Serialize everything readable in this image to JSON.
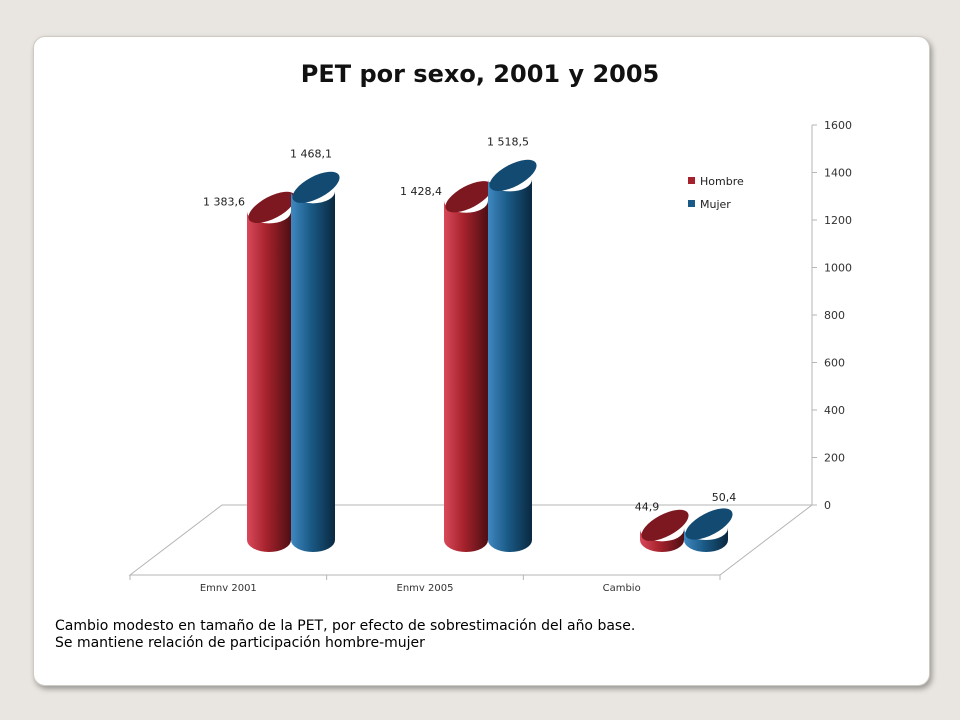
{
  "slide": {
    "notes": [
      "Cambio modesto en tamaño de la PET, por efecto de sobrestimación del año base.",
      "Se mantiene relación de participación hombre-mujer"
    ]
  },
  "chart_data": {
    "type": "bar",
    "title": "PET por sexo, 2001 y 2005",
    "categories": [
      "Emnv 2001",
      "Enmv 2005",
      "Cambio"
    ],
    "series": [
      {
        "name": "Hombre",
        "values": [
          1383.6,
          1428.4,
          44.9
        ],
        "labels": [
          "1 383,6",
          "1 428,4",
          "44,9"
        ],
        "color": "#a5222c"
      },
      {
        "name": "Mujer",
        "values": [
          1468.1,
          1518.5,
          50.4
        ],
        "labels": [
          "1 468,1",
          "1 518,5",
          "50,4"
        ],
        "color": "#1a5a86"
      }
    ],
    "ylim": [
      0,
      1600
    ],
    "yticks": [
      "0",
      "200",
      "400",
      "600",
      "800",
      "1000",
      "1200",
      "1400",
      "1600"
    ],
    "axis_position": "right",
    "legend_position": "right",
    "style": "3d-cylinder",
    "grid": false
  }
}
